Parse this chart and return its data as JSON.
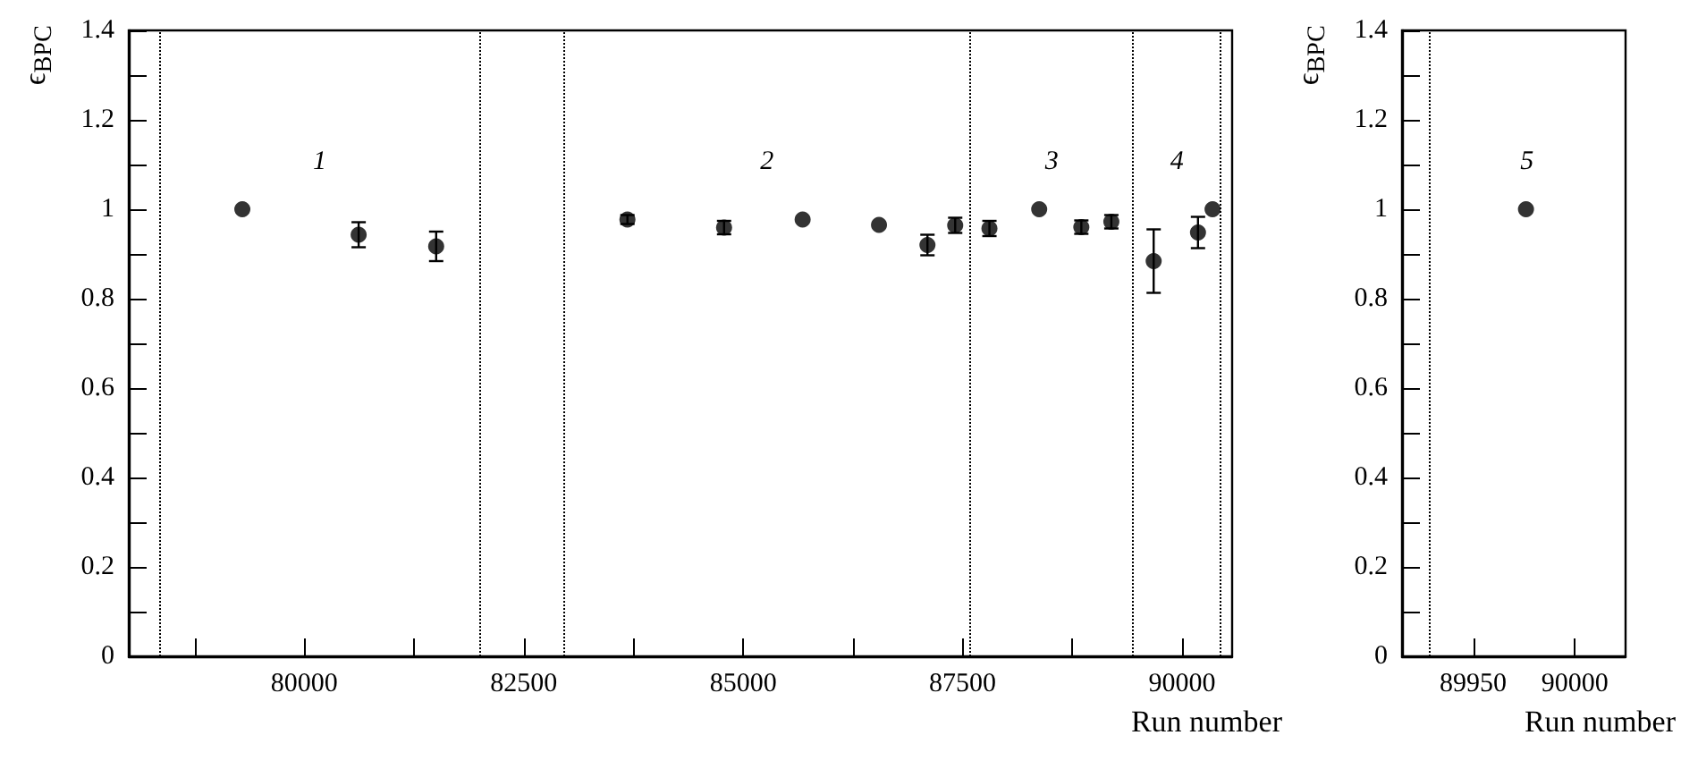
{
  "chart_data": [
    {
      "type": "scatter",
      "color": "#000000",
      "marker": "circle",
      "grid": false,
      "xlabel": "Run number",
      "ylabel": "ϵ$_{BPC}$",
      "x": [
        79294,
        80619,
        81502,
        83681,
        84782,
        85677,
        86547,
        87099,
        87415,
        87805,
        88372,
        88852,
        89194,
        89676,
        90181,
        90347
      ],
      "values": [
        1.0,
        0.943,
        0.917,
        0.977,
        0.959,
        0.977,
        0.965,
        0.92,
        0.964,
        0.957,
        1.0,
        0.96,
        0.972,
        0.884,
        0.948,
        1.0
      ],
      "errors": [
        null,
        0.028,
        0.033,
        0.01,
        0.015,
        null,
        null,
        0.023,
        0.017,
        0.017,
        null,
        0.015,
        0.015,
        0.071,
        0.035,
        null
      ],
      "xlim": [
        78000,
        90570
      ],
      "xticks": [
        {
          "value": 78750,
          "label": null
        },
        80000,
        {
          "value": 81250,
          "label": null
        },
        82500,
        {
          "value": 83750,
          "label": null
        },
        85000,
        {
          "value": 86250,
          "label": null
        },
        87500,
        {
          "value": 88750,
          "label": null
        },
        90000
      ],
      "ylim": [
        0,
        1.4
      ],
      "yticks": [
        0,
        {
          "value": 0.1,
          "label": null
        },
        0.2,
        {
          "value": 0.3,
          "label": null
        },
        0.4,
        {
          "value": 0.5,
          "label": null
        },
        0.6,
        {
          "value": 0.7,
          "label": null
        },
        0.8,
        {
          "value": 0.9,
          "label": null
        },
        1,
        {
          "value": 1.1,
          "label": null
        },
        1.2,
        {
          "value": 1.3,
          "label": null
        },
        1.4
      ],
      "ref_lines": [
        {
          "axis": "x",
          "value": 78350,
          "line_style": "dotted"
        },
        {
          "axis": "x",
          "value": 82000,
          "line_style": "dotted"
        },
        {
          "axis": "x",
          "value": 82950,
          "line_style": "dotted"
        },
        {
          "axis": "x",
          "value": 87590,
          "line_style": "dotted"
        },
        {
          "axis": "x",
          "value": 89440,
          "line_style": "dotted"
        },
        {
          "axis": "x",
          "value": 90440,
          "line_style": "dotted"
        }
      ],
      "annotations": [
        "1",
        "2",
        "3",
        "4"
      ]
    },
    {
      "type": "scatter",
      "color": "#000000",
      "marker": "circle",
      "grid": false,
      "xlabel": "Run number",
      "ylabel": "ϵ$_{BPC}$",
      "x": [
        89976
      ],
      "values": [
        1.0
      ],
      "errors": [
        null
      ],
      "xlim": [
        89915,
        90025
      ],
      "xticks": [
        89950,
        90000
      ],
      "ylim": [
        0,
        1.4
      ],
      "yticks": [
        0,
        {
          "value": 0.1,
          "label": null
        },
        0.2,
        {
          "value": 0.3,
          "label": null
        },
        0.4,
        {
          "value": 0.5,
          "label": null
        },
        0.6,
        {
          "value": 0.7,
          "label": null
        },
        0.8,
        {
          "value": 0.9,
          "label": null
        },
        1,
        {
          "value": 1.1,
          "label": null
        },
        1.2,
        {
          "value": 1.3,
          "label": null
        },
        1.4
      ],
      "ref_lines": [
        {
          "axis": "x",
          "value": 89928,
          "line_style": "dotted"
        }
      ],
      "annotations": [
        "5"
      ]
    }
  ]
}
